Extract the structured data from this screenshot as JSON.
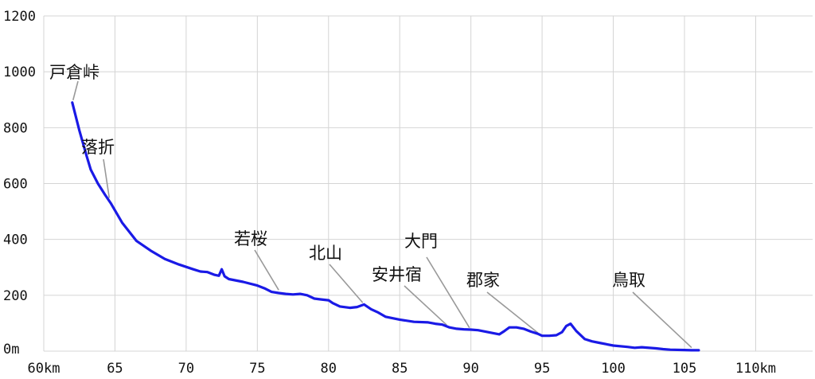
{
  "chart_data": {
    "type": "line",
    "title": "",
    "xlabel": "",
    "ylabel": "",
    "xlim": [
      60,
      114
    ],
    "ylim": [
      0,
      1200
    ],
    "grid": true,
    "line_color": "#1a1ae6",
    "grid_color": "#d4d4d4",
    "leader_color": "#999999",
    "x_ticks": [
      {
        "value": 60,
        "label": "60km"
      },
      {
        "value": 65,
        "label": "65"
      },
      {
        "value": 70,
        "label": "70"
      },
      {
        "value": 75,
        "label": "75"
      },
      {
        "value": 80,
        "label": "80"
      },
      {
        "value": 85,
        "label": "85"
      },
      {
        "value": 90,
        "label": "90"
      },
      {
        "value": 95,
        "label": "95"
      },
      {
        "value": 100,
        "label": "100"
      },
      {
        "value": 105,
        "label": "105"
      },
      {
        "value": 110,
        "label": "110km"
      }
    ],
    "y_ticks": [
      {
        "value": 0,
        "label": "0m"
      },
      {
        "value": 200,
        "label": "200"
      },
      {
        "value": 400,
        "label": "400"
      },
      {
        "value": 600,
        "label": "600"
      },
      {
        "value": 800,
        "label": "800"
      },
      {
        "value": 1000,
        "label": "1000"
      },
      {
        "value": 1200,
        "label": "1200"
      }
    ],
    "series": [
      {
        "x": [
          62.0,
          62.5,
          63.0,
          63.3,
          63.8,
          64.3,
          64.7,
          65.5,
          66.5,
          67.5,
          68.5,
          69.5,
          70.5,
          71.0,
          71.5,
          72.0,
          72.3,
          72.5,
          72.7,
          73.0,
          74.0,
          75.0,
          75.5,
          76.0,
          76.5,
          77.0,
          77.5,
          78.0,
          78.5,
          79.0,
          79.5,
          80.0,
          80.3,
          80.8,
          81.5,
          82.0,
          82.5,
          83.0,
          83.5,
          84.0,
          85.0,
          86.0,
          87.0,
          87.5,
          88.0,
          88.5,
          89.0,
          89.5,
          90.0,
          90.5,
          91.0,
          91.5,
          92.0,
          92.3,
          92.7,
          93.2,
          93.7,
          94.2,
          94.7,
          95.0,
          95.5,
          96.0,
          96.4,
          96.7,
          97.0,
          97.4,
          98.0,
          98.5,
          99.0,
          100.0,
          101.0,
          101.5,
          102.0,
          103.0,
          103.5,
          104.0,
          105.0,
          105.5,
          106.0
        ],
        "y": [
          890,
          790,
          700,
          650,
          600,
          560,
          530,
          460,
          395,
          360,
          330,
          310,
          293,
          285,
          283,
          273,
          270,
          293,
          268,
          258,
          248,
          235,
          225,
          212,
          208,
          205,
          203,
          205,
          200,
          188,
          185,
          182,
          172,
          160,
          155,
          158,
          167,
          150,
          138,
          123,
          113,
          105,
          103,
          98,
          95,
          85,
          80,
          78,
          77,
          75,
          70,
          65,
          60,
          70,
          85,
          85,
          80,
          70,
          62,
          55,
          55,
          57,
          68,
          90,
          98,
          72,
          43,
          35,
          30,
          20,
          15,
          12,
          14,
          10,
          7,
          5,
          4,
          3,
          3
        ]
      }
    ],
    "stations": [
      {
        "name": "戸倉峠",
        "km": 62.0,
        "elev": 890
      },
      {
        "name": "落折",
        "km": 64.6,
        "elev": 540
      },
      {
        "name": "若桜",
        "km": 76.5,
        "elev": 210
      },
      {
        "name": "北山",
        "km": 82.4,
        "elev": 165
      },
      {
        "name": "安井宿",
        "km": 88.3,
        "elev": 85
      },
      {
        "name": "大門",
        "km": 89.9,
        "elev": 75
      },
      {
        "name": "郡家",
        "km": 94.7,
        "elev": 57
      },
      {
        "name": "鳥取",
        "km": 105.5,
        "elev": 4
      }
    ]
  }
}
